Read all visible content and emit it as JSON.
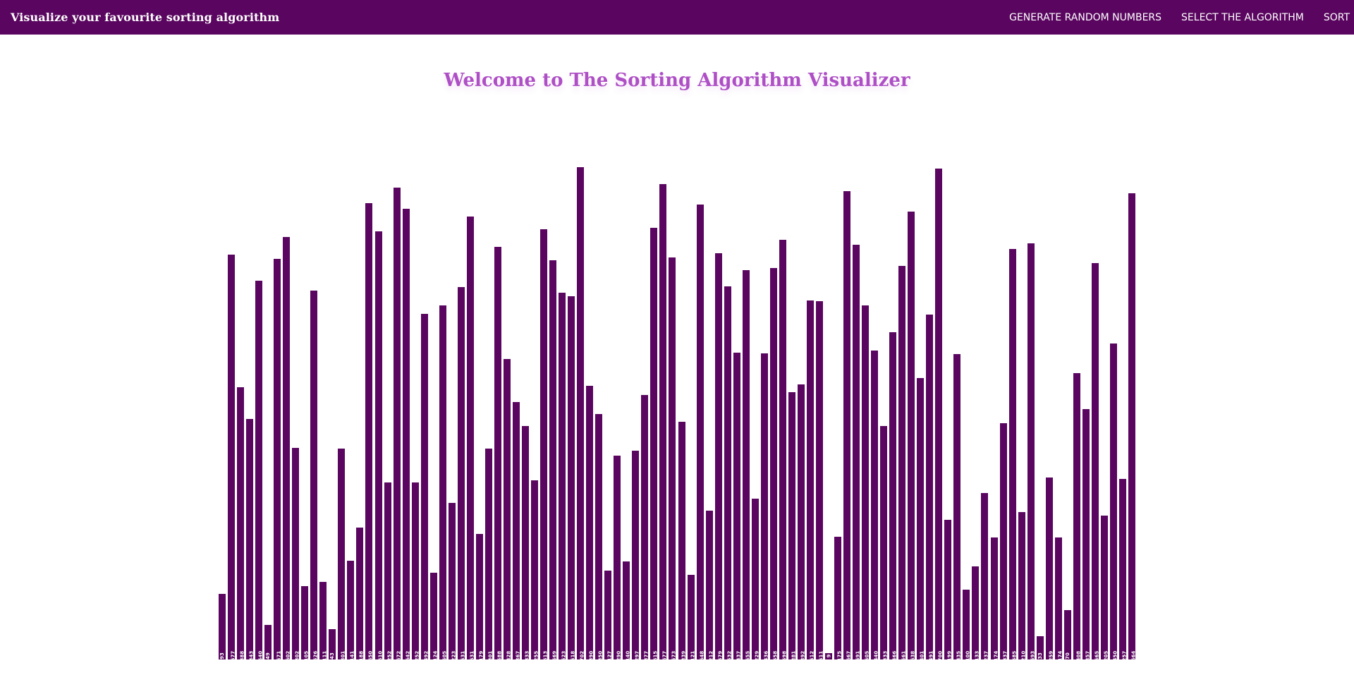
{
  "navbar": {
    "brand": "Visualize your favourite sorting algorithm",
    "links": [
      {
        "label": "GENERATE RANDOM NUMBERS"
      },
      {
        "label": "SELECT THE ALGORITHM"
      },
      {
        "label": "SORT"
      }
    ]
  },
  "title": "Welcome to The Sorting Algorithm Visualizer",
  "colors": {
    "navbar": "#5a0660",
    "bar": "#5a0660",
    "title": "#ae4fc6"
  },
  "chart_data": {
    "type": "bar",
    "values": [
      93,
      577,
      388,
      343,
      540,
      49,
      571,
      602,
      302,
      105,
      526,
      111,
      43,
      301,
      141,
      188,
      650,
      610,
      252,
      672,
      642,
      252,
      492,
      124,
      505,
      223,
      531,
      631,
      179,
      301,
      588,
      428,
      367,
      333,
      255,
      613,
      569,
      523,
      518,
      702,
      390,
      350,
      127,
      290,
      140,
      297,
      377,
      615,
      677,
      573,
      339,
      121,
      648,
      212,
      579,
      532,
      437,
      555,
      229,
      436,
      558,
      598,
      381,
      392,
      512,
      511,
      9,
      175,
      667,
      591,
      505,
      440,
      333,
      466,
      561,
      638,
      401,
      491,
      700,
      199,
      435,
      100,
      133,
      237,
      174,
      337,
      585,
      210,
      593,
      33,
      259,
      174,
      70,
      408,
      357,
      565,
      205,
      450,
      257,
      664
    ]
  }
}
